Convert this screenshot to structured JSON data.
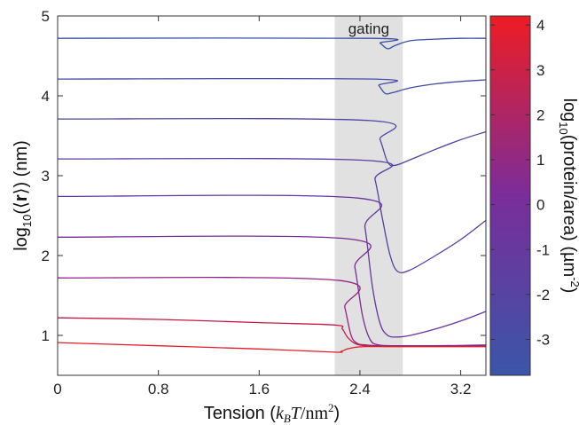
{
  "chart_data": {
    "type": "line",
    "title": "",
    "xlabel_parts": [
      "Tension (",
      "k",
      "B",
      "T",
      "/nm",
      "2",
      ")"
    ],
    "ylabel_parts": [
      "log",
      "10",
      "(⟨",
      "r",
      "⟩) (nm)"
    ],
    "xlim": [
      0,
      3.4
    ],
    "ylim": [
      0.5,
      5
    ],
    "xticks": [
      {
        "value": 0,
        "label": "0"
      },
      {
        "value": 0.8,
        "label": "0.8"
      },
      {
        "value": 1.6,
        "label": "1.6"
      },
      {
        "value": 2.4,
        "label": "2.4"
      },
      {
        "value": 3.2,
        "label": "3.2"
      }
    ],
    "yticks": [
      {
        "value": 1,
        "label": "1"
      },
      {
        "value": 2,
        "label": "2"
      },
      {
        "value": 3,
        "label": "3"
      },
      {
        "value": 4,
        "label": "4"
      },
      {
        "value": 5,
        "label": "5"
      }
    ],
    "gating_region": {
      "x_start": 2.2,
      "x_end": 2.74,
      "label": "gating",
      "color": "#e1e1e1"
    },
    "colorbar": {
      "label_parts": [
        "log",
        "10",
        "(protein/area) (µm",
        "-2",
        ")"
      ],
      "range": [
        -3.8,
        4.2
      ],
      "ticks": [
        {
          "value": -3,
          "label": "-3"
        },
        {
          "value": -2,
          "label": "-2"
        },
        {
          "value": -1,
          "label": "-1"
        },
        {
          "value": 0,
          "label": "0"
        },
        {
          "value": 1,
          "label": "1"
        },
        {
          "value": 2,
          "label": "2"
        },
        {
          "value": 3,
          "label": "3"
        },
        {
          "value": 4,
          "label": "4"
        }
      ],
      "color_low": "#3a56a8",
      "color_mid": "#7a2d9a",
      "color_high": "#ee1c24"
    },
    "series": [
      {
        "color": "#3d4fa5",
        "x": [
          0,
          2.5,
          2.56,
          2.62,
          2.68,
          2.8,
          3.0,
          3.2,
          3.4
        ],
        "y": [
          4.72,
          4.72,
          4.66,
          4.59,
          4.63,
          4.69,
          4.71,
          4.72,
          4.72
        ]
      },
      {
        "color": "#434ba4",
        "x": [
          0,
          2.5,
          2.55,
          2.6,
          2.66,
          2.8,
          3.0,
          3.2,
          3.4
        ],
        "y": [
          4.21,
          4.21,
          4.13,
          4.03,
          4.04,
          4.1,
          4.15,
          4.18,
          4.2
        ]
      },
      {
        "color": "#4c45a2",
        "x": [
          0,
          2.48,
          2.56,
          2.62,
          2.68,
          2.8,
          3.0,
          3.2,
          3.4
        ],
        "y": [
          3.71,
          3.69,
          3.45,
          3.17,
          3.13,
          3.2,
          3.33,
          3.45,
          3.55
        ]
      },
      {
        "color": "#573ea0",
        "x": [
          0,
          2.46,
          2.52,
          2.58,
          2.64,
          2.7,
          2.8,
          3.0,
          3.2,
          3.4
        ],
        "y": [
          3.21,
          3.19,
          2.95,
          2.45,
          2.0,
          1.8,
          1.82,
          2.0,
          2.2,
          2.44
        ]
      },
      {
        "color": "#65369c",
        "x": [
          0,
          2.38,
          2.44,
          2.5,
          2.56,
          2.62,
          2.7,
          2.8,
          3.0,
          3.2,
          3.4
        ],
        "y": [
          2.74,
          2.72,
          2.35,
          1.6,
          1.15,
          1.0,
          0.98,
          1.0,
          1.08,
          1.18,
          1.3
        ]
      },
      {
        "color": "#782c95",
        "x": [
          0,
          2.3,
          2.36,
          2.42,
          2.48,
          2.55,
          2.7,
          3.0,
          3.4
        ],
        "y": [
          2.23,
          2.21,
          1.85,
          1.25,
          0.95,
          0.88,
          0.87,
          0.87,
          0.88
        ]
      },
      {
        "color": "#932383",
        "x": [
          0,
          2.22,
          2.28,
          2.33,
          2.38,
          2.45,
          2.6,
          3.0,
          3.4
        ],
        "y": [
          1.72,
          1.69,
          1.35,
          1.0,
          0.9,
          0.88,
          0.87,
          0.87,
          0.87
        ]
      },
      {
        "color": "#c21b46",
        "x": [
          0,
          0.8,
          1.6,
          2.2,
          2.26,
          2.3,
          2.36,
          2.45,
          2.7,
          3.4
        ],
        "y": [
          1.22,
          1.2,
          1.16,
          1.13,
          1.08,
          0.98,
          0.9,
          0.87,
          0.86,
          0.86
        ]
      },
      {
        "color": "#e01e2b",
        "x": [
          0,
          0.8,
          1.6,
          2.2,
          2.25,
          2.3,
          2.36,
          2.45,
          2.7,
          3.4
        ],
        "y": [
          0.91,
          0.87,
          0.83,
          0.79,
          0.8,
          0.83,
          0.85,
          0.86,
          0.86,
          0.86
        ]
      }
    ]
  }
}
